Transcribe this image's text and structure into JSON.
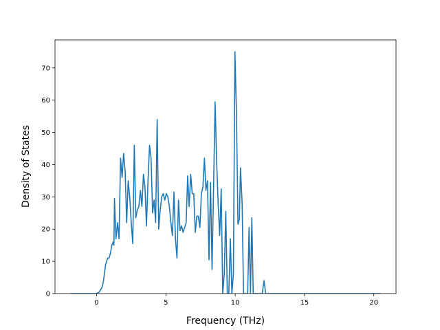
{
  "chart_data": {
    "type": "line",
    "xlabel": "Frequency (THz)",
    "ylabel": "Density of States",
    "color": "#1f77b4",
    "xlim": [
      -3.0,
      21.6
    ],
    "ylim": [
      0,
      78.7
    ],
    "xticks": [
      0,
      5,
      10,
      15,
      20
    ],
    "yticks": [
      0,
      10,
      20,
      30,
      40,
      50,
      60,
      70
    ],
    "x": [
      -1.9,
      0,
      0.2,
      0.4,
      0.5,
      0.65,
      0.8,
      0.9,
      1.0,
      1.1,
      1.2,
      1.25,
      1.29,
      1.4,
      1.51,
      1.62,
      1.73,
      1.84,
      1.95,
      2.06,
      2.17,
      2.28,
      2.39,
      2.5,
      2.61,
      2.72,
      2.83,
      2.94,
      3.05,
      3.16,
      3.27,
      3.38,
      3.49,
      3.6,
      3.71,
      3.82,
      3.93,
      4.04,
      4.15,
      4.26,
      4.37,
      4.48,
      4.59,
      4.7,
      4.81,
      4.92,
      5.03,
      5.14,
      5.25,
      5.36,
      5.47,
      5.58,
      5.69,
      5.8,
      5.91,
      6.02,
      6.13,
      6.24,
      6.35,
      6.46,
      6.57,
      6.68,
      6.79,
      6.9,
      7.01,
      7.12,
      7.23,
      7.34,
      7.45,
      7.56,
      7.67,
      7.78,
      7.89,
      8.0,
      8.11,
      8.22,
      8.33,
      8.44,
      8.55,
      8.66,
      8.77,
      8.88,
      8.99,
      9.1,
      9.21,
      9.32,
      9.43,
      9.54,
      9.65,
      9.76,
      9.87,
      9.98,
      10.09,
      10.2,
      10.3,
      10.38,
      10.5,
      10.6,
      10.9,
      11.0,
      11.1,
      11.2,
      11.3,
      11.95,
      12.08,
      12.2,
      20.5
    ],
    "values": [
      0,
      0,
      0.5,
      2,
      4,
      9,
      11,
      11,
      12.5,
      15,
      16,
      15,
      29.5,
      17,
      22,
      17,
      42,
      36,
      43.5,
      38,
      22,
      35,
      30,
      22,
      15.5,
      46,
      23.5,
      26,
      27,
      32,
      27,
      37,
      33,
      21,
      35,
      46,
      42,
      25,
      29,
      22,
      54,
      20,
      26,
      30,
      31,
      29,
      31,
      30,
      27,
      22,
      18,
      31.5,
      17,
      11,
      29,
      19.5,
      21,
      19,
      20.5,
      22,
      36.5,
      27,
      37,
      31,
      31,
      19,
      24,
      24,
      20.5,
      31,
      33,
      42,
      32,
      35,
      10.5,
      34.5,
      7.5,
      33,
      59.5,
      41,
      28,
      18,
      32.5,
      0,
      6,
      25.5,
      0,
      0,
      17,
      0,
      6,
      75,
      56,
      21.5,
      23,
      39,
      28,
      0,
      0,
      20.5,
      0,
      23.5,
      0,
      0,
      4,
      0,
      0
    ]
  }
}
